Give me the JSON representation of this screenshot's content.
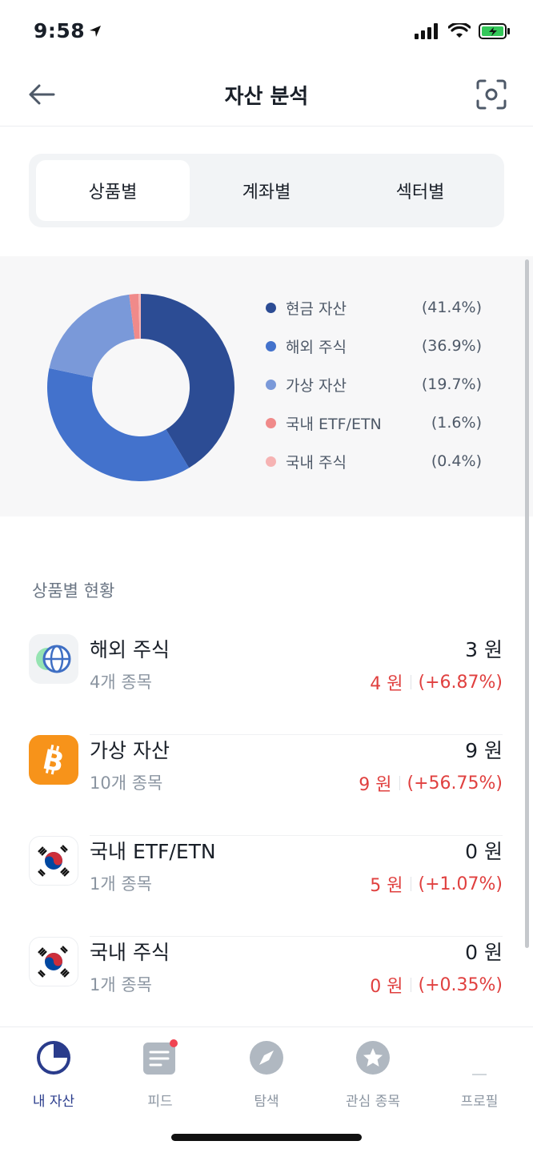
{
  "status_bar": {
    "time": "9:58"
  },
  "header": {
    "title": "자산 분석"
  },
  "segments": [
    {
      "label": "상품별",
      "active": true
    },
    {
      "label": "계좌별",
      "active": false
    },
    {
      "label": "섹터별",
      "active": false
    }
  ],
  "chart_data": {
    "type": "pie",
    "variant": "donut",
    "categories": [
      "현금 자산",
      "해외 주식",
      "가상 자산",
      "국내 ETF/ETN",
      "국내 주식"
    ],
    "values": [
      41.4,
      36.9,
      19.7,
      1.6,
      0.4
    ],
    "value_labels": [
      "(41.4%)",
      "(36.9%)",
      "(19.7%)",
      "(1.6%)",
      "(0.4%)"
    ],
    "colors": [
      "#2c4c94",
      "#4372cc",
      "#7a99d9",
      "#f08a8a",
      "#f6b3b3"
    ],
    "legend": "right"
  },
  "list": {
    "title": "상품별 현황",
    "items": [
      {
        "name": "해외 주식",
        "count": "4개 종목",
        "value": "3 원",
        "change_amount": "4 원",
        "change_pct": "(+6.87%)",
        "icon": "globe-icon"
      },
      {
        "name": "가상 자산",
        "count": "10개 종목",
        "value": "9 원",
        "change_amount": "9 원",
        "change_pct": "(+56.75%)",
        "icon": "bitcoin-icon"
      },
      {
        "name": "국내 ETF/ETN",
        "count": "1개 종목",
        "value": "0 원",
        "change_amount": "5 원",
        "change_pct": "(+1.07%)",
        "icon": "korea-flag-icon"
      },
      {
        "name": "국내 주식",
        "count": "1개 종목",
        "value": "0 원",
        "change_amount": "0 원",
        "change_pct": "(+0.35%)",
        "icon": "korea-flag-icon"
      }
    ]
  },
  "nav": [
    {
      "label": "내 자산",
      "icon": "pie-chart-icon",
      "active": true
    },
    {
      "label": "피드",
      "icon": "feed-icon",
      "active": false
    },
    {
      "label": "탐색",
      "icon": "compass-icon",
      "active": false
    },
    {
      "label": "관심 종목",
      "icon": "star-icon",
      "active": false
    },
    {
      "label": "프로필",
      "icon": "profile-icon",
      "active": false
    }
  ],
  "colors": {
    "positive": "#e0403f",
    "accent": "#2a3c8c"
  }
}
